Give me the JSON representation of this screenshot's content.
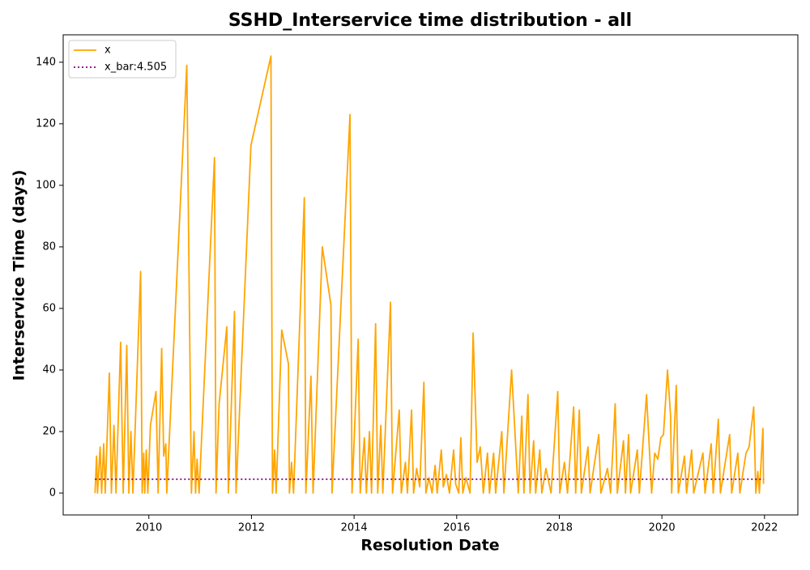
{
  "chart_data": {
    "type": "line",
    "title": "SSHD_Interservice time distribution - all",
    "xlabel": "Resolution Date",
    "ylabel": "Interservice Time (days)",
    "xlim": [
      2008.33,
      2022.65
    ],
    "ylim": [
      -7.1,
      148.9
    ],
    "xticks": [
      2010,
      2012,
      2014,
      2016,
      2018,
      2020,
      2022
    ],
    "yticks": [
      0,
      20,
      40,
      60,
      80,
      100,
      120,
      140
    ],
    "legend": "upper left",
    "series": [
      {
        "name": "x",
        "color": "#ffa500",
        "style": "solid",
        "x": [
          2008.95,
          2008.98,
          2009.0,
          2009.05,
          2009.08,
          2009.12,
          2009.15,
          2009.23,
          2009.27,
          2009.32,
          2009.36,
          2009.45,
          2009.5,
          2009.57,
          2009.61,
          2009.65,
          2009.69,
          2009.84,
          2009.87,
          2009.9,
          2009.92,
          2009.95,
          2009.98,
          2010.03,
          2010.14,
          2010.18,
          2010.25,
          2010.29,
          2010.33,
          2010.35,
          2010.74,
          2010.83,
          2010.88,
          2010.91,
          2010.94,
          2010.98,
          2011.28,
          2011.31,
          2011.37,
          2011.52,
          2011.55,
          2011.67,
          2011.7,
          2011.99,
          2012.38,
          2012.41,
          2012.45,
          2012.48,
          2012.59,
          2012.72,
          2012.74,
          2012.78,
          2012.82,
          2013.03,
          2013.06,
          2013.16,
          2013.2,
          2013.38,
          2013.55,
          2013.57,
          2013.92,
          2013.96,
          2014.08,
          2014.12,
          2014.2,
          2014.24,
          2014.3,
          2014.34,
          2014.42,
          2014.46,
          2014.52,
          2014.56,
          2014.71,
          2014.75,
          2014.88,
          2014.92,
          2015.0,
          2015.04,
          2015.12,
          2015.16,
          2015.22,
          2015.28,
          2015.36,
          2015.4,
          2015.46,
          2015.52,
          2015.58,
          2015.62,
          2015.7,
          2015.74,
          2015.8,
          2015.86,
          2015.94,
          2015.98,
          2016.04,
          2016.08,
          2016.12,
          2016.18,
          2016.26,
          2016.32,
          2016.4,
          2016.46,
          2016.52,
          2016.6,
          2016.64,
          2016.72,
          2016.76,
          2016.88,
          2016.92,
          2017.07,
          2017.2,
          2017.27,
          2017.31,
          2017.39,
          2017.43,
          2017.5,
          2017.54,
          2017.62,
          2017.66,
          2017.74,
          2017.84,
          2017.97,
          2018.01,
          2018.1,
          2018.16,
          2018.28,
          2018.32,
          2018.39,
          2018.43,
          2018.56,
          2018.6,
          2018.77,
          2018.81,
          2018.94,
          2019.0,
          2019.09,
          2019.13,
          2019.25,
          2019.29,
          2019.35,
          2019.39,
          2019.52,
          2019.56,
          2019.7,
          2019.8,
          2019.86,
          2019.92,
          2019.98,
          2020.03,
          2020.11,
          2020.17,
          2020.19,
          2020.28,
          2020.32,
          2020.44,
          2020.48,
          2020.58,
          2020.62,
          2020.8,
          2020.84,
          2020.96,
          2021.0,
          2021.1,
          2021.14,
          2021.32,
          2021.36,
          2021.48,
          2021.52,
          2021.64,
          2021.7,
          2021.79,
          2021.83,
          2021.87,
          2021.9,
          2021.97,
          2021.98
        ],
        "values": [
          0,
          12,
          0,
          15,
          0,
          16,
          0,
          39,
          0,
          22,
          0,
          49,
          0,
          48,
          0,
          20,
          0,
          72,
          0,
          13,
          0,
          14,
          0,
          22,
          33,
          0,
          47,
          12,
          16,
          0,
          139,
          0,
          20,
          0,
          11,
          0,
          109,
          0,
          29,
          54,
          0,
          59,
          0,
          113,
          142,
          0,
          14,
          0,
          53,
          42,
          0,
          10,
          0,
          96,
          0,
          38,
          0,
          80,
          61,
          0,
          123,
          0,
          50,
          0,
          18,
          0,
          20,
          0,
          55,
          0,
          22,
          0,
          62,
          0,
          27,
          0,
          10,
          0,
          27,
          0,
          8,
          2,
          36,
          0,
          5,
          0,
          9,
          0,
          14,
          2,
          6,
          0,
          14,
          3,
          0,
          18,
          0,
          5,
          0,
          52,
          10,
          15,
          0,
          13,
          0,
          13,
          0,
          20,
          0,
          40,
          0,
          25,
          0,
          32,
          0,
          17,
          0,
          14,
          0,
          8,
          0,
          33,
          0,
          10,
          0,
          28,
          0,
          27,
          0,
          15,
          0,
          19,
          0,
          8,
          0,
          29,
          0,
          17,
          0,
          19,
          0,
          14,
          0,
          32,
          0,
          13,
          11,
          18,
          19,
          40,
          25,
          0,
          35,
          0,
          12,
          0,
          14,
          0,
          13,
          0,
          16,
          0,
          24,
          0,
          19,
          0,
          13,
          0,
          13,
          15,
          28,
          0,
          7,
          0,
          21,
          3
        ]
      },
      {
        "name": "x_bar:4.505",
        "color": "#800080",
        "style": "dotted",
        "x": [
          2008.95,
          2021.98
        ],
        "values": [
          4.505,
          4.505
        ]
      }
    ]
  }
}
